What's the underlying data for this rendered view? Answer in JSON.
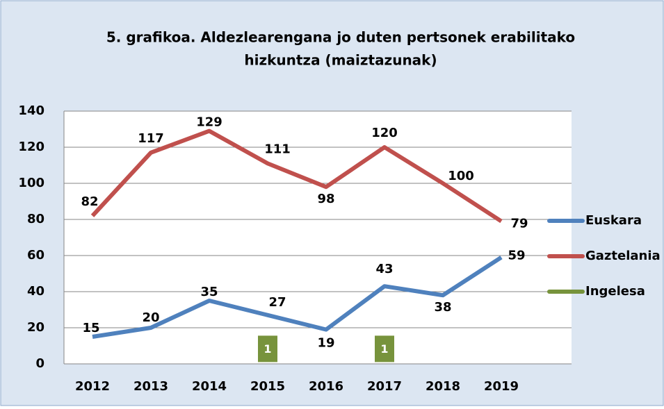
{
  "chart_data": {
    "type": "line",
    "title": "5. grafikoa. Aldezlearengana jo duten pertsonek erabilitako",
    "subtitle": "hizkuntza (maiztazunak)",
    "categories": [
      "2012",
      "2013",
      "2014",
      "2015",
      "2016",
      "2017",
      "2018",
      "2019"
    ],
    "series": [
      {
        "name": "Euskara",
        "color": "#4f81bd",
        "values": [
          15,
          20,
          35,
          27,
          19,
          43,
          38,
          59
        ]
      },
      {
        "name": "Gaztelania",
        "color": "#c0504d",
        "values": [
          82,
          117,
          129,
          111,
          98,
          120,
          100,
          79
        ]
      },
      {
        "name": "Ingelesa",
        "color": "#77933c",
        "values": [
          null,
          null,
          null,
          1,
          null,
          1,
          null,
          null
        ]
      }
    ],
    "ylim": [
      0,
      140
    ],
    "yticks": [
      0,
      20,
      40,
      60,
      80,
      100,
      120,
      140
    ],
    "grid": true,
    "legend": "right"
  }
}
